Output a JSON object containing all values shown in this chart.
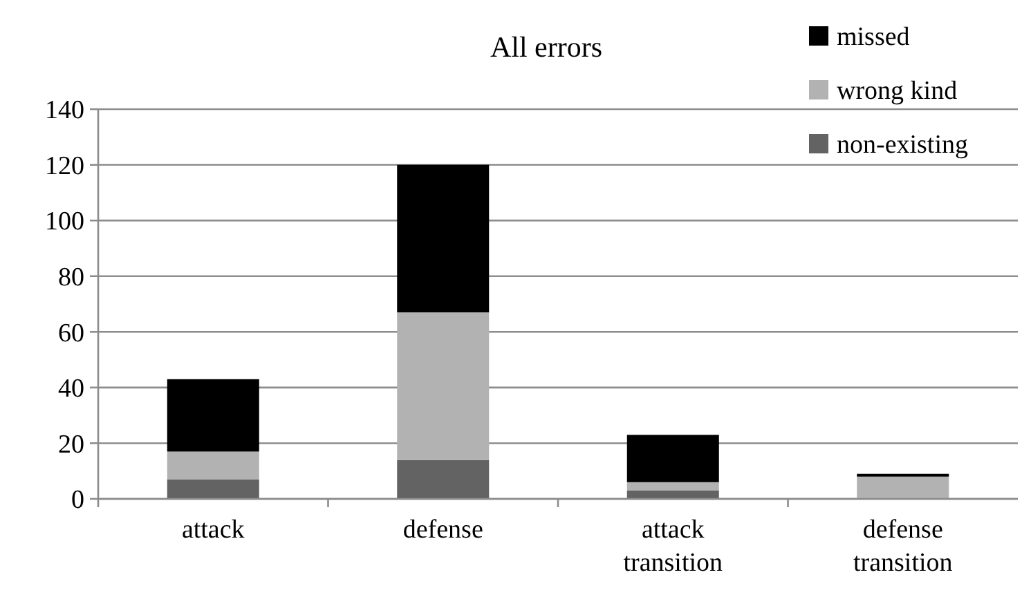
{
  "chart_data": {
    "type": "bar",
    "title": "All errors",
    "categories": [
      "attack",
      "defense",
      "attack transition",
      "defense transition"
    ],
    "stacked": true,
    "series": [
      {
        "name": "non-existing",
        "color": "#636363",
        "values": [
          7,
          14,
          3,
          0
        ]
      },
      {
        "name": "wrong kind",
        "color": "#b2b2b2",
        "values": [
          10,
          53,
          3,
          8
        ]
      },
      {
        "name": "missed",
        "color": "#000000",
        "values": [
          26,
          53,
          17,
          1
        ]
      }
    ],
    "ylim": [
      0,
      140
    ],
    "yticks": [
      0,
      20,
      40,
      60,
      80,
      100,
      120,
      140
    ],
    "grid": "y",
    "legend": "top right"
  }
}
